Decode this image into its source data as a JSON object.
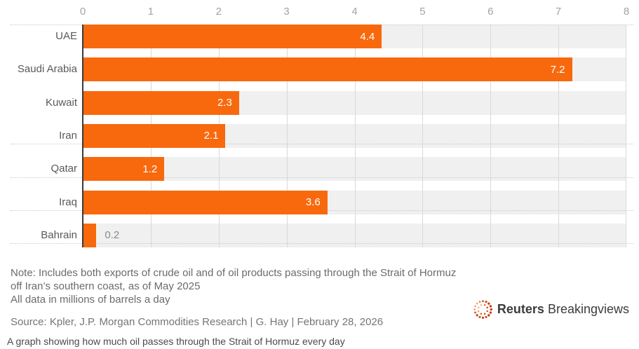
{
  "chart_data": {
    "type": "bar",
    "orientation": "horizontal",
    "title": "",
    "categories": [
      "UAE",
      "Saudi Arabia",
      "Kuwait",
      "Iran",
      "Qatar",
      "Iraq",
      "Bahrain"
    ],
    "values": [
      4.4,
      7.2,
      2.3,
      2.1,
      1.2,
      3.6,
      0.2
    ],
    "value_labels": [
      "4.4",
      "7.2",
      "2.3",
      "2.1",
      "1.2",
      "3.6",
      "0.2"
    ],
    "xlim": [
      0,
      8
    ],
    "x_tick_labels": [
      "0",
      "1",
      "2",
      "3",
      "4",
      "5",
      "6",
      "7",
      "8"
    ],
    "units": "millions of barrels a day",
    "grid": "vertical",
    "legend": "none",
    "bar_color": "#F8690D",
    "track_color": "#F0F0F0",
    "outside_label_threshold": 0.5
  },
  "footer": {
    "note_line1": "Note: Includes both exports of crude oil and of oil products passing through the Strait of Hormuz",
    "note_line2": "off Iran’s southern coast, as of May 2025",
    "note_line3": "All data in millions of barrels a day",
    "source": "Source: Kpler, J.P. Morgan Commodities Research | G. Hay | February 28, 2026",
    "caption": "A graph showing how much oil passes through the Strait of Hormuz every day"
  },
  "brand": {
    "name_bold": "Reuters",
    "name_regular": "Breakingviews",
    "dot_color_dark": "#C93D12",
    "dot_color_mid": "#E55A1E",
    "dot_color_light": "#EFA07A"
  }
}
